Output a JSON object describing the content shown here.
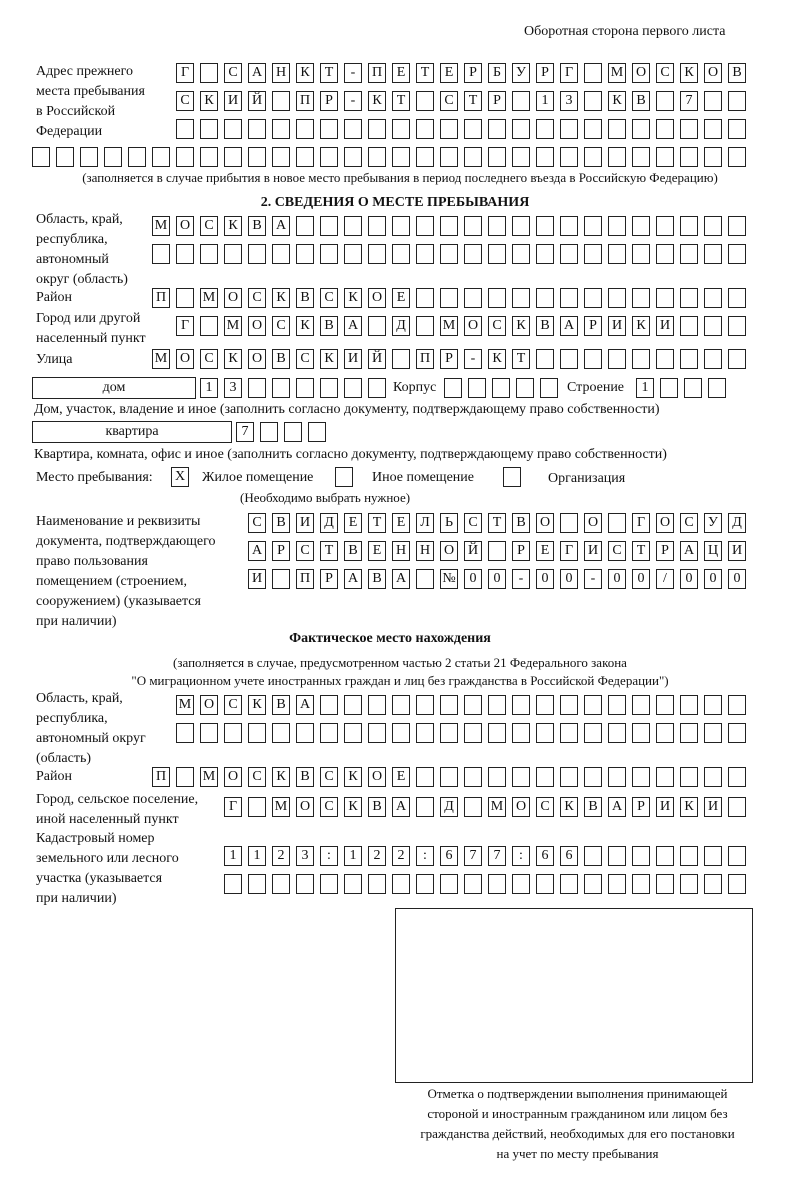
{
  "header": "Оборотная сторона первого листа",
  "prev_address": {
    "label": [
      "Адрес прежнего",
      "места пребывания",
      "в Российской",
      "Федерации"
    ],
    "rows": [
      "Г САНКТ-ПЕТЕРБУРГ МОСКОВ",
      "СКИЙ ПР-КТ СТР 13 КВ 7  ",
      "                        ",
      "                              "
    ],
    "note": "(заполняется в случае прибытия в новое место пребывания в период последнего въезда в Российскую Федерацию)"
  },
  "section2": {
    "title": "2. СВЕДЕНИЯ О МЕСТЕ ПРЕБЫВАНИЯ",
    "region_label": [
      "Область, край,",
      "республика,",
      "автономный",
      "округ (область)"
    ],
    "region_rows": [
      "МОСКВА                   ",
      "                         "
    ],
    "district_label": "Район",
    "district_row": "П МОСКВСКОЕ              ",
    "city_label": [
      "Город или другой",
      "населенный пункт"
    ],
    "city_row": "Г МОСКВА Д МОСКВАРИКИ   ",
    "street_label": "Улица",
    "street_row": "МОСКОВСКИЙ ПР-КТ         ",
    "house_type": "дом",
    "house_row": "13      ",
    "korpus_label": "Корпус",
    "korpus_row": "     ",
    "building_label": "Строение",
    "building_row": "1   ",
    "house_note": "Дом, участок, владение и иное (заполнить согласно документу, подтверждающему право собственности)",
    "flat_type": "квартира",
    "flat_row": "7   ",
    "flat_note": "Квартира, комната, офис и иное (заполнить согласно документу, подтверждающему право собственности)",
    "stay_label": "Место пребывания:",
    "stay_options": [
      {
        "mark": "X",
        "label": "Жилое помещение",
        "checked": true
      },
      {
        "mark": "",
        "label": "Иное помещение",
        "checked": false
      },
      {
        "mark": "",
        "label": "Организация",
        "checked": false
      }
    ],
    "stay_note": "(Необходимо выбрать нужное)",
    "doc_label": [
      "Наименование и реквизиты",
      "документа, подтверждающего",
      "право пользования",
      "помещением (строением,",
      "сооружением) (указывается",
      "при наличии)"
    ],
    "doc_rows": [
      "СВИДЕТЕЛЬСТВО О ГОСУД",
      "АРСТВЕННОЙ РЕГИСТРАЦИ",
      "И ПРАВА №00-00-00/000"
    ]
  },
  "actual": {
    "title": "Фактическое место нахождения",
    "note": [
      "(заполняется в случае, предусмотренном частью 2 статьи 21 Федерального закона",
      "\"О миграционном учете иностранных граждан и лиц без гражданства в Российской Федерации\")"
    ],
    "region_label": [
      "Область, край,",
      "республика,",
      "автономный округ",
      "(область)"
    ],
    "region_rows": [
      "МОСКВА                  ",
      "                        "
    ],
    "district_label": "Район",
    "district_row": "П МОСКВСКОЕ              ",
    "city_label": [
      "Город, сельское поселение,",
      "иной населенный пункт"
    ],
    "city_row": "Г МОСКВА Д МОСКВАРИКИ ",
    "cadastre_label": [
      "Кадастровый номер",
      "земельного или лесного",
      "участка (указывается",
      "при наличии)"
    ],
    "cadastre_rows": [
      "1123:122:677:66       ",
      "                      "
    ]
  },
  "stamp_caption": [
    "Отметка о подтверждении выполнения принимающей",
    "стороной и иностранным гражданином или лицом без",
    "гражданства действий, необходимых для его постановки",
    "на учет по месту пребывания"
  ]
}
